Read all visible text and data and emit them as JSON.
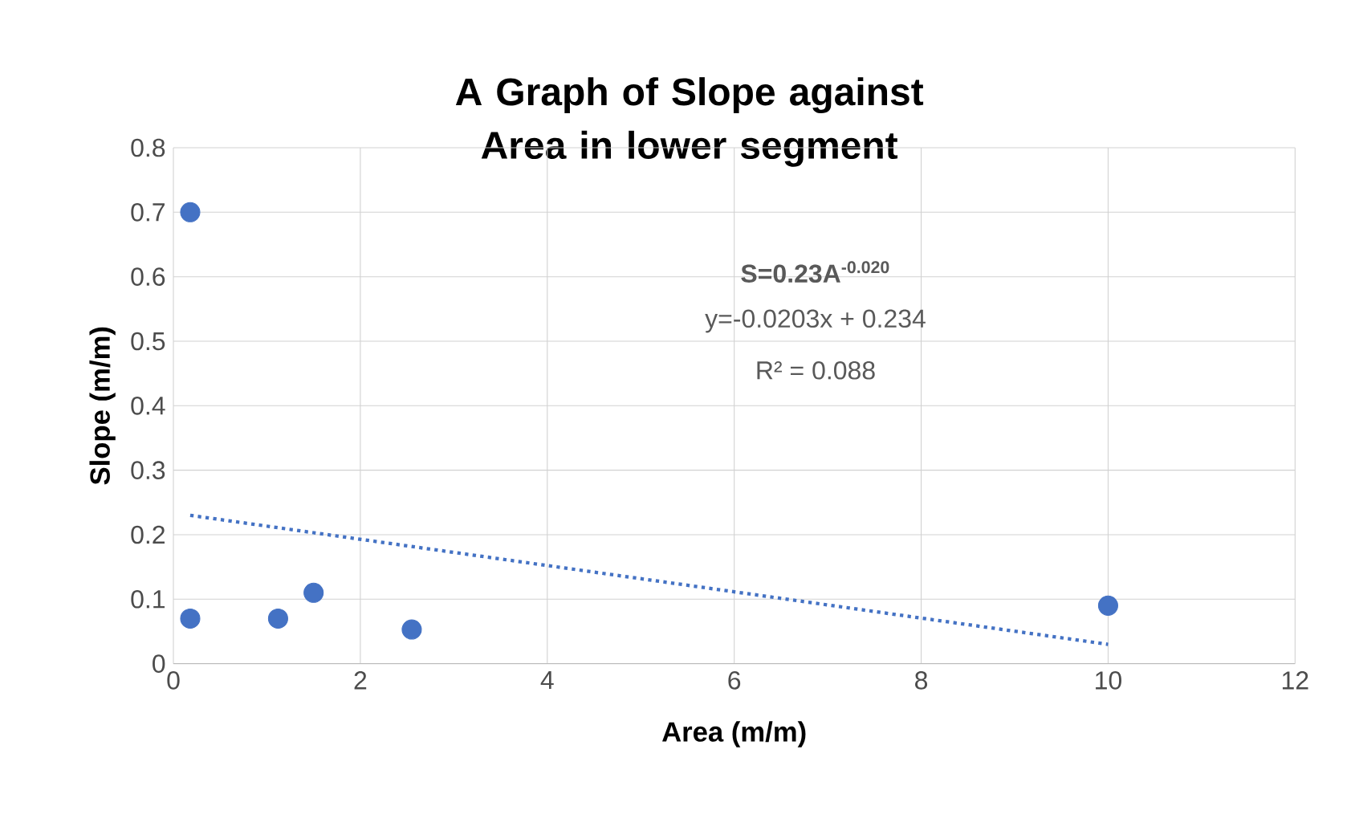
{
  "chart_data": {
    "type": "scatter",
    "title": "A Graph of Slope against Area in lower segment",
    "xlabel": "Area (m/m)",
    "ylabel": "Slope (m/m)",
    "annotations": [
      "S=0.23A$^{-0.020}$",
      "y=-0.0203x + 0.234",
      "R² = 0.088"
    ],
    "series": [
      {
        "color": "#4472c4",
        "marker": "circle",
        "x": [
          0.18,
          0.18,
          1.12,
          1.5,
          2.55,
          10
        ],
        "values": [
          0.7,
          0.07,
          0.07,
          0.11,
          0.053,
          0.09
        ]
      },
      {
        "type": "line",
        "color": "#4472c4",
        "line_style": "dotted",
        "x": [
          0.18,
          10
        ],
        "values": [
          0.23,
          0.03
        ]
      }
    ],
    "xlim": [
      0,
      12
    ],
    "ylim": [
      0,
      0.8
    ],
    "xticks": [
      0,
      2,
      4,
      6,
      8,
      10,
      12
    ],
    "yticks": [
      0,
      0.1,
      0.2,
      0.3,
      0.4,
      0.5,
      0.6,
      0.7,
      0.8
    ],
    "grid": true
  }
}
